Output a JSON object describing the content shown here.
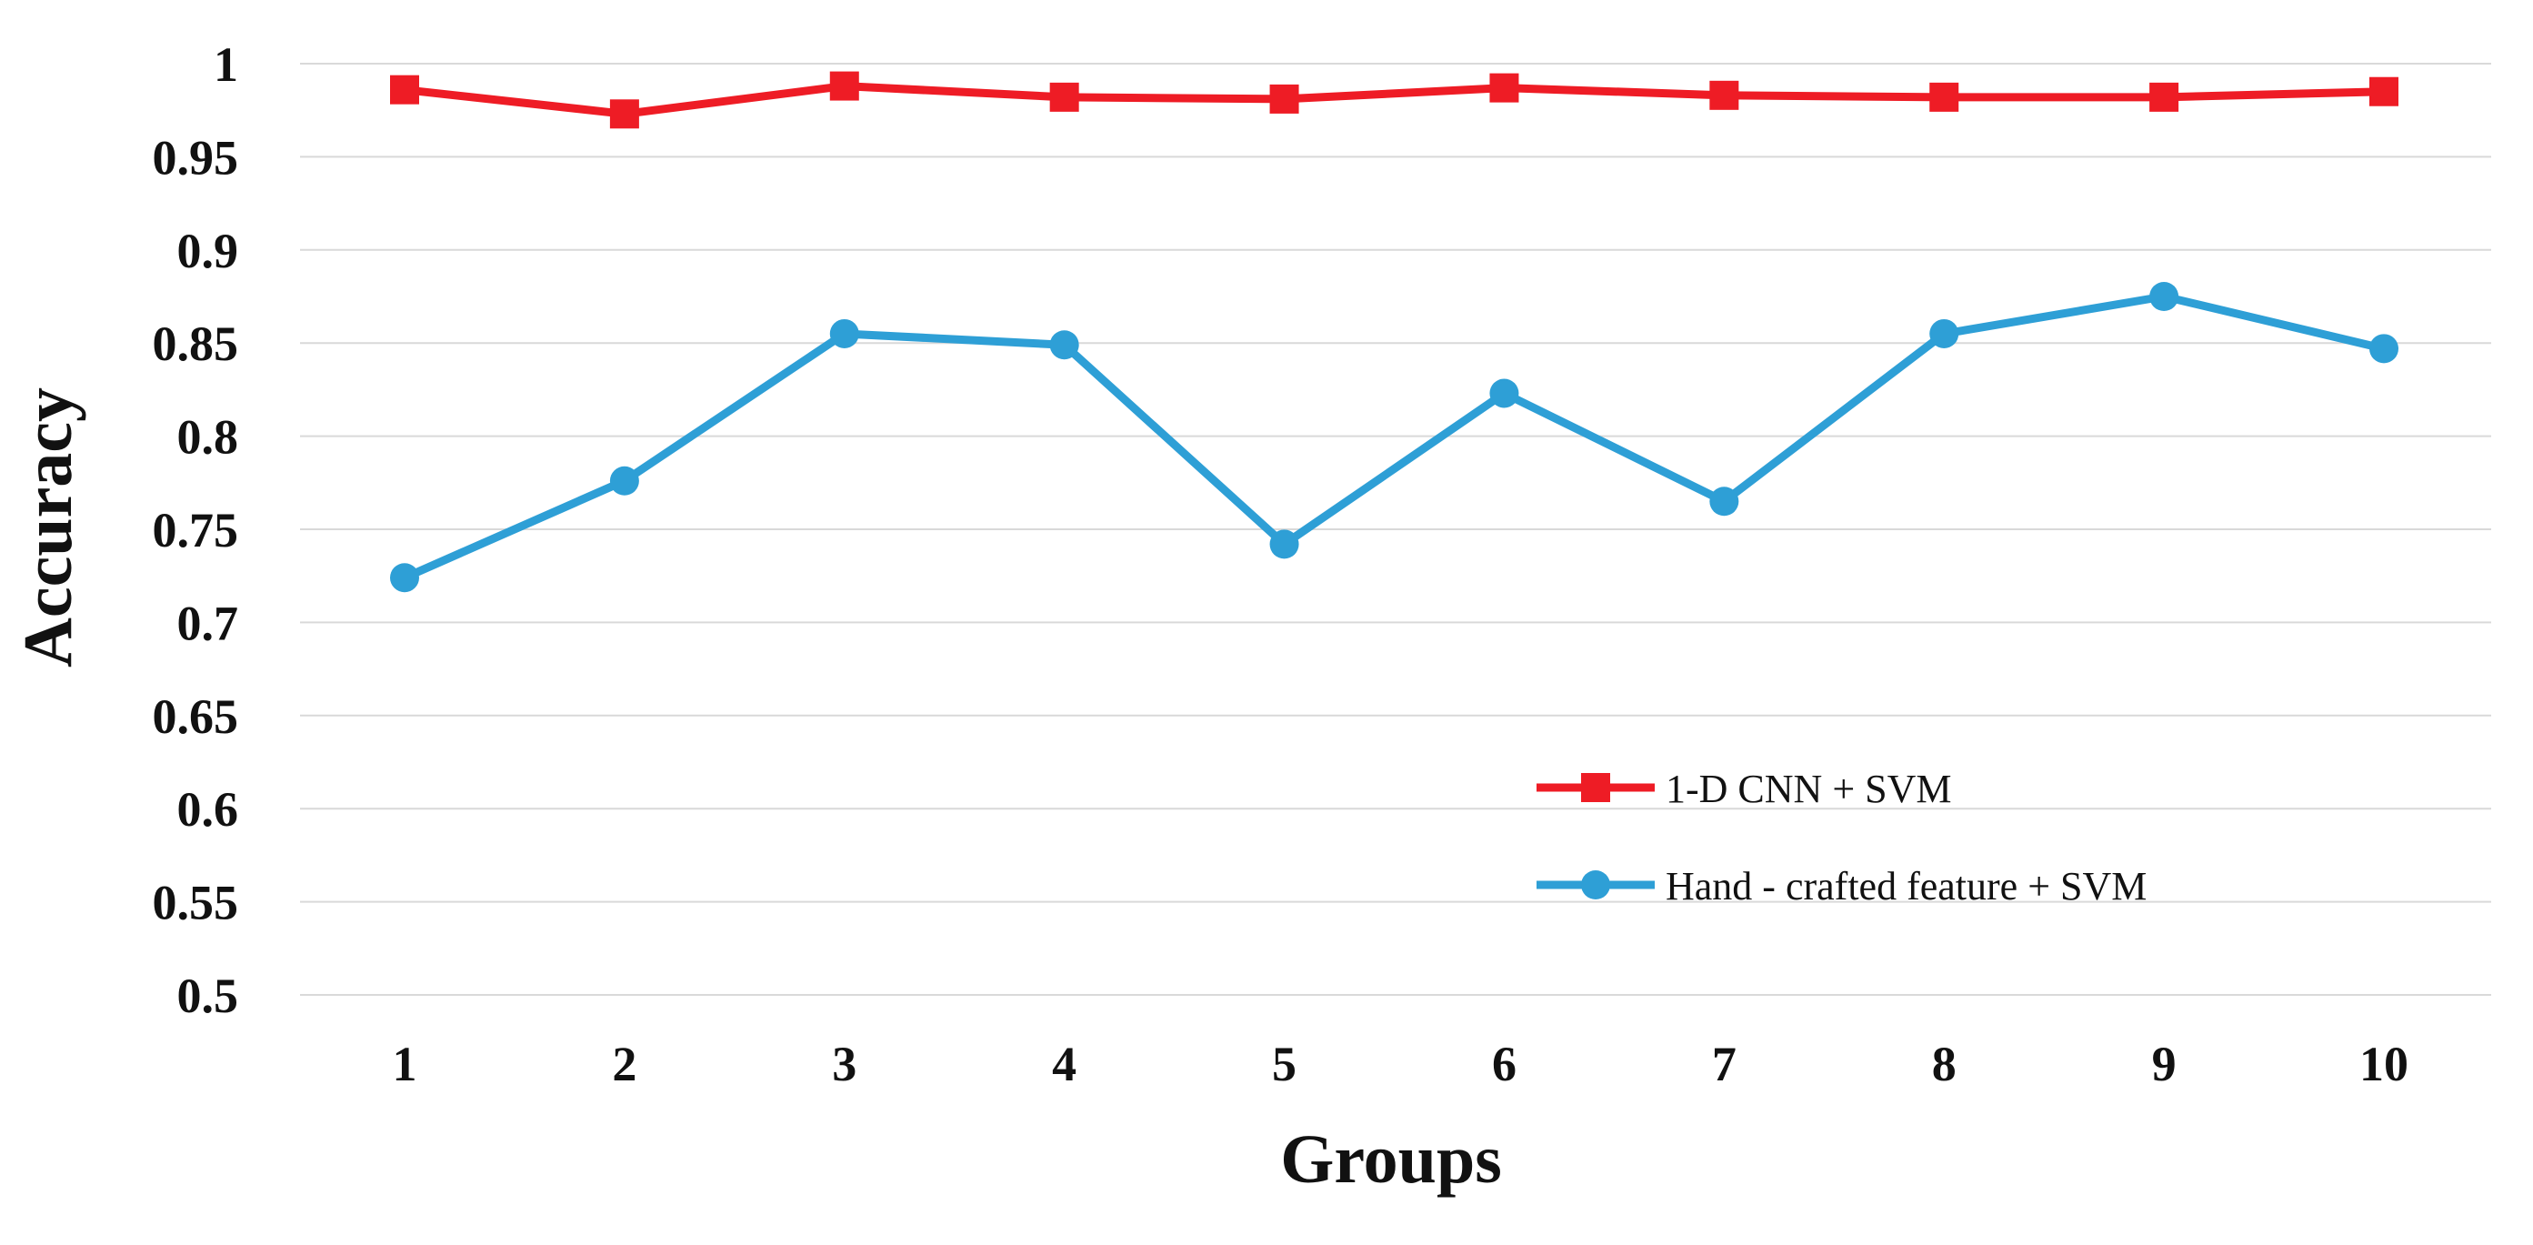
{
  "chart_data": {
    "type": "line",
    "title": "",
    "xlabel": "Groups",
    "ylabel": "Accuracy",
    "categories": [
      "1",
      "2",
      "3",
      "4",
      "5",
      "6",
      "7",
      "8",
      "9",
      "10"
    ],
    "ylim": [
      0.5,
      1.0
    ],
    "yticks": [
      "0.5",
      "0.55",
      "0.6",
      "0.65",
      "0.7",
      "0.75",
      "0.8",
      "0.85",
      "0.9",
      "0.95",
      "1"
    ],
    "grid": true,
    "legend_position": "inside-lower-right",
    "series": [
      {
        "name": "1-D CNN + SVM",
        "color": "#ee1c25",
        "marker": "square",
        "values": [
          0.986,
          0.973,
          0.988,
          0.982,
          0.981,
          0.987,
          0.983,
          0.982,
          0.982,
          0.985
        ]
      },
      {
        "name": "Hand - crafted feature + SVM",
        "color": "#2e9fd6",
        "marker": "circle",
        "values": [
          0.724,
          0.776,
          0.855,
          0.849,
          0.742,
          0.823,
          0.765,
          0.855,
          0.875,
          0.847
        ]
      }
    ]
  }
}
